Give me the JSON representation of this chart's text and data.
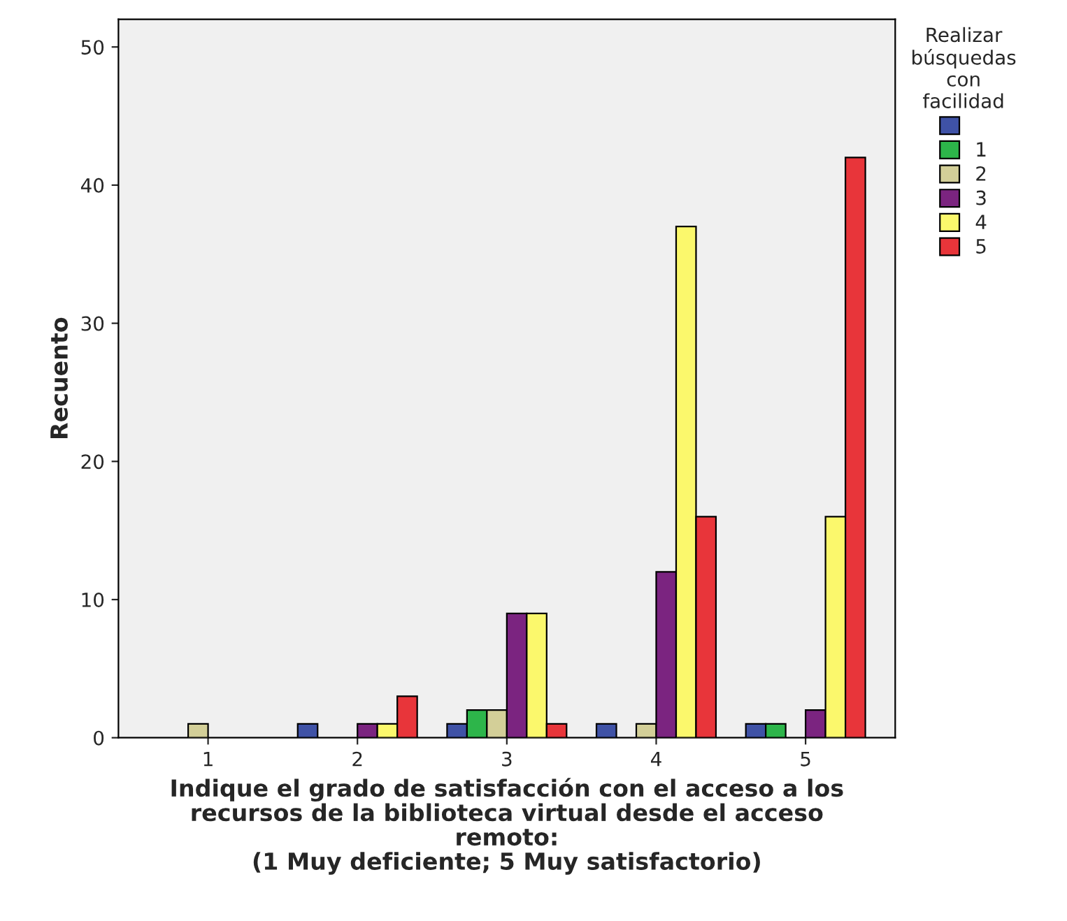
{
  "chart_data": {
    "type": "bar",
    "xlabel": "Indique el grado de satisfacción con el acceso a los\nrecursos de la biblioteca virtual desde el acceso\nremoto:\n(1 Muy deficiente; 5 Muy satisfactorio)",
    "ylabel": "Recuento",
    "legend_title": "Realizar\nbúsquedas\ncon\nfacilidad",
    "legend": "right",
    "categories": [
      "1",
      "2",
      "3",
      "4",
      "5"
    ],
    "series": [
      {
        "color": "#3f52a6",
        "values": [
          null,
          1,
          1,
          1,
          1
        ]
      },
      {
        "name": "1",
        "color": "#2db54a",
        "values": [
          null,
          null,
          2,
          null,
          1
        ]
      },
      {
        "name": "2",
        "color": "#d3cf98",
        "values": [
          1,
          null,
          2,
          1,
          null
        ]
      },
      {
        "name": "3",
        "color": "#7b2480",
        "values": [
          null,
          1,
          9,
          12,
          2
        ]
      },
      {
        "name": "4",
        "color": "#fbf86c",
        "values": [
          null,
          1,
          9,
          37,
          16
        ]
      },
      {
        "name": "5",
        "color": "#e8353a",
        "values": [
          null,
          3,
          1,
          16,
          42
        ]
      }
    ],
    "ylim": [
      0,
      52
    ],
    "yticks": [
      0,
      10,
      20,
      30,
      40,
      50
    ],
    "grid": false
  }
}
